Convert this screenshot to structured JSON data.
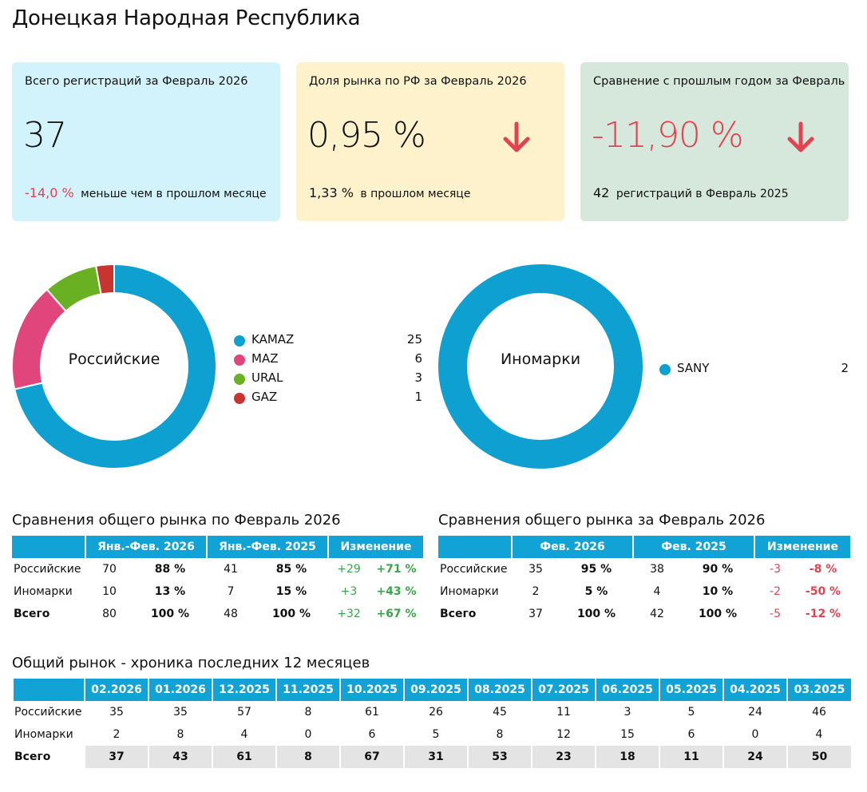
{
  "page": {
    "title": "Донецкая Народная Республика"
  },
  "cards": {
    "registrations": {
      "title": "Всего регистраций за Февраль 2026",
      "value": "37",
      "change": "-14,0 %",
      "change_text": "меньше чем в прошлом месяце"
    },
    "share": {
      "title": "Доля рынка по РФ за Февраль 2026",
      "value": "0,95 %",
      "prev": "1,33 %",
      "prev_text": "в прошлом месяце",
      "arrow_icon": "arrow-down-icon"
    },
    "yoy": {
      "title": "Сравнение с прошлым годом за Февраль",
      "value": "-11,90 %",
      "prev": "42",
      "prev_text": "регистраций в Февраль 2025",
      "arrow_icon": "arrow-down-icon"
    }
  },
  "colors": {
    "blue": "#0ea0d0",
    "pink": "#e0467c",
    "green": "#6ab023",
    "red": "#c83530",
    "accent_red": "#e3424f",
    "header": "#12a3d6"
  },
  "donut_russian": {
    "label": "Российские",
    "items": [
      {
        "name": "KAMAZ",
        "value": 25,
        "color": "#0ea0d0"
      },
      {
        "name": "MAZ",
        "value": 6,
        "color": "#e0467c"
      },
      {
        "name": "URAL",
        "value": 3,
        "color": "#6ab023"
      },
      {
        "name": "GAZ",
        "value": 1,
        "color": "#c83530"
      }
    ]
  },
  "donut_foreign": {
    "label": "Иномарки",
    "items": [
      {
        "name": "SANY",
        "value": 2,
        "color": "#0ea0d0"
      }
    ]
  },
  "table_ytd": {
    "title": "Сравнения общего рынка по Февраль 2026",
    "headers": [
      "",
      "Янв.-Фев. 2026",
      "Янв.-Фев. 2025",
      "Изменение"
    ],
    "rows": [
      {
        "name": "Российские",
        "a": "70",
        "ap": "88 %",
        "b": "41",
        "bp": "85 %",
        "d": "+29",
        "dp": "+71 %"
      },
      {
        "name": "Иномарки",
        "a": "10",
        "ap": "13 %",
        "b": "7",
        "bp": "15 %",
        "d": "+3",
        "dp": "+43 %"
      },
      {
        "name": "Всего",
        "a": "80",
        "ap": "100 %",
        "b": "48",
        "bp": "100 %",
        "d": "+32",
        "dp": "+67 %"
      }
    ]
  },
  "table_month": {
    "title": "Сравнения общего рынка за Февраль 2026",
    "headers": [
      "",
      "Фев. 2026",
      "Фев. 2025",
      "Изменение"
    ],
    "rows": [
      {
        "name": "Российские",
        "a": "35",
        "ap": "95 %",
        "b": "38",
        "bp": "90 %",
        "d": "-3",
        "dp": "-8 %"
      },
      {
        "name": "Иномарки",
        "a": "2",
        "ap": "5 %",
        "b": "4",
        "bp": "10 %",
        "d": "-2",
        "dp": "-50 %"
      },
      {
        "name": "Всего",
        "a": "37",
        "ap": "100 %",
        "b": "42",
        "bp": "100 %",
        "d": "-5",
        "dp": "-12 %"
      }
    ]
  },
  "history": {
    "title": "Общий рынок - хроника последних 12 месяцев",
    "months": [
      "02.2026",
      "01.2026",
      "12.2025",
      "11.2025",
      "10.2025",
      "09.2025",
      "08.2025",
      "07.2025",
      "06.2025",
      "05.2025",
      "04.2025",
      "03.2025"
    ],
    "rows": [
      {
        "name": "Российские",
        "values": [
          "35",
          "35",
          "57",
          "8",
          "61",
          "26",
          "45",
          "11",
          "3",
          "5",
          "24",
          "46"
        ]
      },
      {
        "name": "Иномарки",
        "values": [
          "2",
          "8",
          "4",
          "0",
          "6",
          "5",
          "8",
          "12",
          "15",
          "6",
          "0",
          "4"
        ]
      },
      {
        "name": "Всего",
        "values": [
          "37",
          "43",
          "61",
          "8",
          "67",
          "31",
          "53",
          "23",
          "18",
          "11",
          "24",
          "50"
        ]
      }
    ]
  }
}
